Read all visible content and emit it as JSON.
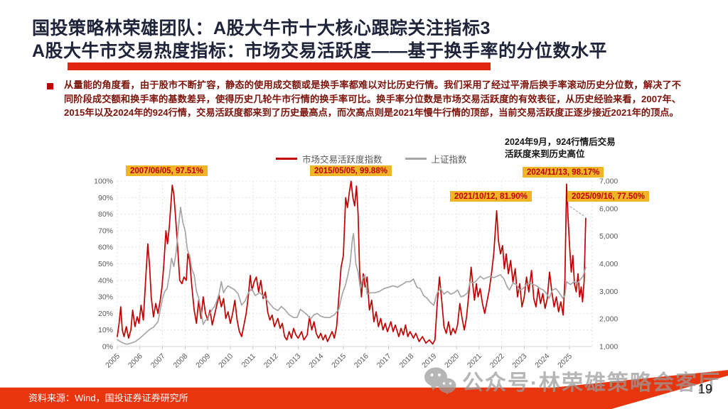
{
  "slide": {
    "title_line1": "国投策略林荣雄团队：A股大牛市十大核心跟踪关注指标3",
    "title_line2": "A股大牛市交易热度指标：市场交易活跃度——基于换手率的分位数水平",
    "paragraph": "从量能的角度看，由于股市不断扩容，静态的使用成交额或是换手率都难以对比历史行情。我们采用了经过平滑后换手率滚动历史分位数，解决了不同阶段成交额和换手率的基数差异，使得历史几轮牛市行情的换手率可比。换手率分位数是市场交易活跃度的有效表征，从历史经验来看，2007年、2015年以及2024年的924行情，交易活跃度都来到了历史最高点，而次高点则是2021年慢牛行情的顶部，当前交易活跃度正逐步接近2021年的顶点。",
    "footer_source": "资料来源：Wind，国投证券证券研究所",
    "page_number": "19",
    "watermark": "公众号·林荣雄策略会客厅"
  },
  "colors": {
    "title": "#20243a",
    "paragraph": "#7c130b",
    "accent_red_bar": "#e2250e",
    "footer_red": "#e8350e",
    "annotation_bg": "#f0b429",
    "annotation_text": "#c00000",
    "series_red": "#c00000",
    "series_gray": "#a6a6a6"
  },
  "chart_data": {
    "type": "line",
    "title": "",
    "legend_position": "top",
    "grid": true,
    "note_line1": "2024年9月，924行情后交易",
    "note_line2": "活跃度来到历史高位",
    "x_ticks": [
      "2005",
      "2006",
      "2007",
      "2008",
      "2009",
      "2010",
      "2011",
      "2012",
      "2013",
      "2014",
      "2015",
      "2016",
      "2017",
      "2018",
      "2019",
      "2020",
      "2021",
      "2022",
      "2023",
      "2024",
      "2025"
    ],
    "y_left": {
      "range": [
        0,
        100
      ],
      "ticks": [
        "0%",
        "10%",
        "20%",
        "30%",
        "40%",
        "50%",
        "60%",
        "70%",
        "80%",
        "90%",
        "100%"
      ]
    },
    "y_right": {
      "range": [
        1000,
        7000
      ],
      "ticks": [
        "1,000",
        "2,000",
        "3,000",
        "4,000",
        "5,000",
        "6,000",
        "7,000"
      ]
    },
    "annotations": [
      {
        "date": "2007/06/05",
        "value": "97.51%",
        "label": "2007/06/05, 97.51%"
      },
      {
        "date": "2015/05/05",
        "value": "99.88%",
        "label": "2015/05/05, 99.88%"
      },
      {
        "date": "2021/10/12",
        "value": "81.90%",
        "label": "2021/10/12, 81.90%"
      },
      {
        "date": "2024/11/13",
        "value": "98.17%",
        "label": "2024/11/13, 98.17%"
      },
      {
        "date": "2025/09/16",
        "value": "77.50%",
        "label": "2025/09/16, 77.50%"
      }
    ],
    "series": [
      {
        "name": "市场交易活跃度指数",
        "axis": "left",
        "unit": "%",
        "color": "#c00000",
        "x": [
          2005.0,
          2005.08,
          2005.15,
          2005.22,
          2005.3,
          2005.4,
          2005.5,
          2005.6,
          2005.68,
          2005.78,
          2005.88,
          2005.96,
          2006.05,
          2006.15,
          2006.25,
          2006.35,
          2006.43,
          2006.5,
          2006.6,
          2006.7,
          2006.8,
          2006.9,
          2006.97,
          2007.05,
          2007.15,
          2007.22,
          2007.3,
          2007.43,
          2007.5,
          2007.58,
          2007.67,
          2007.76,
          2007.86,
          2007.95,
          2008.05,
          2008.12,
          2008.2,
          2008.3,
          2008.4,
          2008.5,
          2008.6,
          2008.7,
          2008.8,
          2008.9,
          2009.0,
          2009.1,
          2009.2,
          2009.3,
          2009.4,
          2009.5,
          2009.6,
          2009.7,
          2009.8,
          2009.9,
          2010.0,
          2010.1,
          2010.2,
          2010.3,
          2010.4,
          2010.5,
          2010.6,
          2010.7,
          2010.8,
          2010.88,
          2010.96,
          2011.05,
          2011.15,
          2011.25,
          2011.35,
          2011.45,
          2011.55,
          2011.65,
          2011.75,
          2011.85,
          2011.95,
          2012.1,
          2012.2,
          2012.3,
          2012.4,
          2012.5,
          2012.6,
          2012.7,
          2012.8,
          2012.9,
          2013.0,
          2013.15,
          2013.25,
          2013.4,
          2013.5,
          2013.6,
          2013.7,
          2013.8,
          2013.9,
          2014.0,
          2014.1,
          2014.2,
          2014.3,
          2014.4,
          2014.5,
          2014.6,
          2014.7,
          2014.8,
          2014.9,
          2015.0,
          2015.1,
          2015.18,
          2015.26,
          2015.34,
          2015.42,
          2015.5,
          2015.58,
          2015.65,
          2015.72,
          2015.8,
          2015.88,
          2015.96,
          2016.05,
          2016.15,
          2016.25,
          2016.35,
          2016.45,
          2016.55,
          2016.65,
          2016.75,
          2016.85,
          2016.95,
          2017.1,
          2017.2,
          2017.3,
          2017.45,
          2017.55,
          2017.65,
          2017.75,
          2017.85,
          2017.95,
          2018.1,
          2018.2,
          2018.35,
          2018.5,
          2018.65,
          2018.8,
          2018.95,
          2019.05,
          2019.15,
          2019.25,
          2019.35,
          2019.45,
          2019.55,
          2019.65,
          2019.75,
          2019.85,
          2019.95,
          2020.05,
          2020.15,
          2020.25,
          2020.35,
          2020.45,
          2020.55,
          2020.65,
          2020.72,
          2020.8,
          2020.88,
          2020.96,
          2021.05,
          2021.15,
          2021.25,
          2021.35,
          2021.45,
          2021.55,
          2021.65,
          2021.78,
          2021.86,
          2021.95,
          2022.04,
          2022.12,
          2022.2,
          2022.3,
          2022.4,
          2022.5,
          2022.6,
          2022.7,
          2022.8,
          2022.9,
          2023.0,
          2023.1,
          2023.2,
          2023.32,
          2023.42,
          2023.52,
          2023.62,
          2023.72,
          2023.82,
          2023.92,
          2024.02,
          2024.12,
          2024.22,
          2024.32,
          2024.42,
          2024.52,
          2024.62,
          2024.72,
          2024.8,
          2024.87,
          2024.93,
          2025.0,
          2025.08,
          2025.15,
          2025.22,
          2025.3,
          2025.38,
          2025.45,
          2025.52,
          2025.58,
          2025.65,
          2025.72
        ],
        "y": [
          6,
          14,
          24,
          10,
          6,
          12,
          5,
          10,
          22,
          12,
          18,
          14,
          25,
          16,
          40,
          62,
          48,
          30,
          18,
          26,
          20,
          28,
          35,
          48,
          70,
          62,
          72,
          97.5,
          92,
          78,
          60,
          40,
          38,
          42,
          40,
          56,
          52,
          36,
          22,
          14,
          28,
          17,
          30,
          20,
          16,
          22,
          13,
          19,
          25,
          31,
          24,
          29,
          17,
          21,
          14,
          20,
          28,
          16,
          9,
          6,
          13,
          20,
          31,
          43,
          34,
          39,
          42,
          33,
          40,
          29,
          33,
          21,
          16,
          19,
          12,
          17,
          11,
          14,
          6,
          4,
          9,
          5,
          11,
          7,
          5,
          9,
          4,
          7,
          18,
          10,
          15,
          8,
          5,
          8,
          4,
          7,
          3,
          6,
          9,
          5,
          12,
          30,
          48,
          55,
          90,
          84,
          93,
          99.9,
          90,
          85,
          97,
          80,
          45,
          30,
          44,
          36,
          42,
          22,
          28,
          15,
          21,
          12,
          17,
          10,
          14,
          9,
          15,
          9,
          13,
          6,
          11,
          7,
          13,
          6,
          9,
          5,
          8,
          3,
          6,
          2,
          4,
          1.5,
          4,
          26,
          42,
          28,
          12,
          8,
          15,
          7,
          11,
          8,
          13,
          26,
          17,
          10,
          18,
          32,
          48,
          38,
          28,
          38,
          30,
          35,
          26,
          20,
          27,
          34,
          44,
          56,
          82,
          64,
          56,
          61,
          47,
          56,
          44,
          52,
          39,
          47,
          30,
          38,
          24,
          30,
          42,
          33,
          46,
          29,
          24,
          35,
          26,
          32,
          23,
          29,
          45,
          33,
          24,
          30,
          21,
          27,
          19,
          40,
          98.2,
          80,
          62,
          45,
          55,
          38,
          33,
          44,
          30,
          36,
          27,
          40,
          77.5
        ]
      },
      {
        "name": "上证指数",
        "axis": "right",
        "unit": "points",
        "color": "#a6a6a6",
        "x": [
          2005.0,
          2005.2,
          2005.4,
          2005.6,
          2005.8,
          2006.0,
          2006.2,
          2006.4,
          2006.6,
          2006.8,
          2007.0,
          2007.1,
          2007.2,
          2007.3,
          2007.4,
          2007.5,
          2007.6,
          2007.7,
          2007.8,
          2007.9,
          2008.0,
          2008.1,
          2008.2,
          2008.3,
          2008.4,
          2008.5,
          2008.6,
          2008.7,
          2008.8,
          2008.9,
          2009.0,
          2009.1,
          2009.2,
          2009.3,
          2009.4,
          2009.5,
          2009.6,
          2009.7,
          2009.8,
          2009.9,
          2010.0,
          2010.2,
          2010.35,
          2010.5,
          2010.65,
          2010.8,
          2010.95,
          2011.1,
          2011.3,
          2011.5,
          2011.7,
          2011.9,
          2012.1,
          2012.25,
          2012.4,
          2012.6,
          2012.8,
          2012.95,
          2013.1,
          2013.25,
          2013.4,
          2013.55,
          2013.7,
          2013.85,
          2014.0,
          2014.2,
          2014.4,
          2014.6,
          2014.8,
          2014.95,
          2015.1,
          2015.2,
          2015.3,
          2015.4,
          2015.45,
          2015.55,
          2015.65,
          2015.75,
          2015.85,
          2015.95,
          2016.05,
          2016.2,
          2016.4,
          2016.6,
          2016.8,
          2017.0,
          2017.2,
          2017.4,
          2017.6,
          2017.8,
          2017.95,
          2018.1,
          2018.25,
          2018.4,
          2018.55,
          2018.7,
          2018.85,
          2019.0,
          2019.15,
          2019.3,
          2019.45,
          2019.6,
          2019.75,
          2019.9,
          2020.05,
          2020.2,
          2020.35,
          2020.5,
          2020.6,
          2020.75,
          2020.9,
          2021.05,
          2021.2,
          2021.35,
          2021.5,
          2021.65,
          2021.8,
          2021.95,
          2022.1,
          2022.25,
          2022.35,
          2022.5,
          2022.65,
          2022.8,
          2022.95,
          2023.1,
          2023.25,
          2023.4,
          2023.55,
          2023.7,
          2023.85,
          2024.0,
          2024.1,
          2024.25,
          2024.4,
          2024.55,
          2024.7,
          2024.8,
          2024.87,
          2024.95,
          2025.05,
          2025.2,
          2025.35,
          2025.5,
          2025.6,
          2025.72
        ],
        "y": [
          1250,
          1150,
          1080,
          1120,
          1180,
          1300,
          1450,
          1600,
          1700,
          1900,
          2750,
          3000,
          3100,
          3550,
          4200,
          3900,
          4400,
          5300,
          6050,
          5500,
          5200,
          4500,
          4300,
          3800,
          3600,
          3000,
          2750,
          2300,
          1800,
          1950,
          2000,
          2200,
          2350,
          2450,
          2650,
          2900,
          3350,
          2950,
          3100,
          3200,
          3150,
          3050,
          2900,
          2500,
          2650,
          2950,
          3100,
          2850,
          2950,
          2800,
          2600,
          2400,
          2300,
          2450,
          2350,
          2150,
          2050,
          2050,
          2350,
          2250,
          2150,
          2000,
          2150,
          2200,
          2100,
          2050,
          2050,
          2150,
          2350,
          2900,
          3250,
          3600,
          4000,
          4900,
          5100,
          4000,
          3700,
          3100,
          3450,
          3600,
          2900,
          2950,
          2950,
          3000,
          3100,
          3150,
          3200,
          3150,
          3250,
          3350,
          3350,
          3450,
          3150,
          3100,
          2850,
          2750,
          2600,
          2500,
          2950,
          3100,
          2900,
          3000,
          2900,
          2950,
          3050,
          2800,
          2850,
          2950,
          3350,
          3300,
          3400,
          3550,
          3450,
          3500,
          3550,
          3500,
          3550,
          3600,
          3450,
          3150,
          3050,
          3300,
          3250,
          3050,
          3100,
          3250,
          3300,
          3250,
          3200,
          3100,
          3050,
          2900,
          2750,
          3050,
          3100,
          2950,
          2750,
          2850,
          3350,
          3300,
          3250,
          3350,
          3300,
          3450,
          3550,
          3870
        ]
      }
    ]
  }
}
